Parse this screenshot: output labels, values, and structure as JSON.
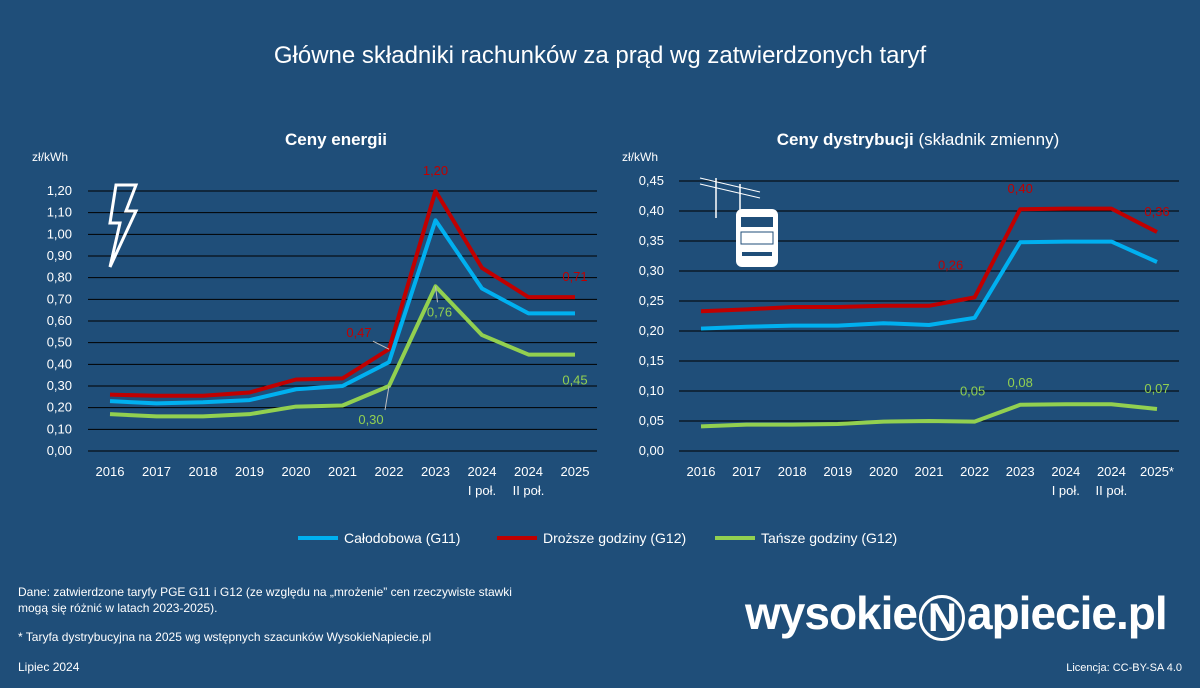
{
  "title": "Główne składniki rachunków za prąd wg zatwierdzonych taryf",
  "colors": {
    "background": "#1f4e79",
    "g11": "#00b0f0",
    "g12_peak": "#c00000",
    "g12_offpeak": "#92d050",
    "grid": "#000000",
    "text": "#ffffff"
  },
  "legend": [
    {
      "label": "Całodobowa (G11)",
      "color": "#00b0f0"
    },
    {
      "label": "Droższe godziny (G12)",
      "color": "#c00000"
    },
    {
      "label": "Tańsze godziny (G12)",
      "color": "#92d050"
    }
  ],
  "chart_data": [
    {
      "type": "line",
      "title": "Ceny energii",
      "title_suffix": "",
      "ylabel": "zł/kWh",
      "ylim": [
        0,
        1.2
      ],
      "yticks": [
        "0,00",
        "0,10",
        "0,20",
        "0,30",
        "0,40",
        "0,50",
        "0,60",
        "0,70",
        "0,80",
        "0,90",
        "1,00",
        "1,10",
        "1,20"
      ],
      "categories": [
        "2016",
        "2017",
        "2018",
        "2019",
        "2020",
        "2021",
        "2022",
        "2023",
        "2024",
        "2024",
        "2025"
      ],
      "subcategories": [
        "",
        "",
        "",
        "",
        "",
        "",
        "",
        "",
        "I poł.",
        "II poł.",
        ""
      ],
      "icon": "lightning-icon",
      "series": [
        {
          "name": "Całodobowa (G11)",
          "values": [
            0.23,
            0.22,
            0.225,
            0.235,
            0.285,
            0.3,
            0.41,
            1.065,
            0.75,
            0.635,
            0.635
          ]
        },
        {
          "name": "Droższe godziny (G12)",
          "values": [
            0.26,
            0.255,
            0.255,
            0.27,
            0.33,
            0.335,
            0.47,
            1.2,
            0.845,
            0.71,
            0.71
          ]
        },
        {
          "name": "Tańsze godziny (G12)",
          "values": [
            0.17,
            0.16,
            0.16,
            0.17,
            0.205,
            0.21,
            0.3,
            0.76,
            0.535,
            0.445,
            0.445
          ]
        }
      ],
      "annotations": [
        {
          "series": 1,
          "index": 6,
          "text": "0,47"
        },
        {
          "series": 1,
          "index": 7,
          "text": "1,20"
        },
        {
          "series": 1,
          "index": 10,
          "text": "0,71"
        },
        {
          "series": 2,
          "index": 6,
          "text": "0,30"
        },
        {
          "series": 2,
          "index": 7,
          "text": "0,76"
        },
        {
          "series": 2,
          "index": 10,
          "text": "0,45"
        }
      ]
    },
    {
      "type": "line",
      "title": "Ceny dystrybucji",
      "title_suffix": "(składnik zmienny)",
      "ylabel": "zł/kWh",
      "ylim": [
        0,
        0.45
      ],
      "yticks": [
        "0,00",
        "0,05",
        "0,10",
        "0,15",
        "0,20",
        "0,25",
        "0,30",
        "0,35",
        "0,40",
        "0,45"
      ],
      "categories": [
        "2016",
        "2017",
        "2018",
        "2019",
        "2020",
        "2021",
        "2022",
        "2023",
        "2024",
        "2024",
        "2025*"
      ],
      "subcategories": [
        "",
        "",
        "",
        "",
        "",
        "",
        "",
        "",
        "I poł.",
        "II poł.",
        ""
      ],
      "icon": "electricity-meter-icon",
      "series": [
        {
          "name": "Całodobowa (G11)",
          "values": [
            0.204,
            0.207,
            0.209,
            0.209,
            0.213,
            0.21,
            0.222,
            0.348,
            0.349,
            0.349,
            0.315
          ]
        },
        {
          "name": "Droższe godziny (G12)",
          "values": [
            0.233,
            0.236,
            0.24,
            0.24,
            0.242,
            0.242,
            0.256,
            0.403,
            0.404,
            0.404,
            0.365
          ]
        },
        {
          "name": "Tańsze godziny (G12)",
          "values": [
            0.041,
            0.044,
            0.044,
            0.045,
            0.049,
            0.05,
            0.049,
            0.077,
            0.078,
            0.078,
            0.07
          ]
        }
      ],
      "annotations": [
        {
          "series": 1,
          "index": 6,
          "text": "0,26"
        },
        {
          "series": 1,
          "index": 7,
          "text": "0,40"
        },
        {
          "series": 1,
          "index": 10,
          "text": "0,36"
        },
        {
          "series": 2,
          "index": 6,
          "text": "0,05"
        },
        {
          "series": 2,
          "index": 7,
          "text": "0,08"
        },
        {
          "series": 2,
          "index": 10,
          "text": "0,07"
        }
      ]
    }
  ],
  "notes": {
    "source": "Dane: zatwierdzone taryfy PGE G11 i G12 (ze względu na „mrożenie” cen rzeczywiste stawki mogą się różnić w latach 2023-2025).",
    "footnote": "* Taryfa dystrybucyjna na 2025 wg wstępnych szacunków WysokieNapiecie.pl",
    "date": "Lipiec 2024",
    "license": "Licencja: CC-BY-SA 4.0"
  },
  "logo": {
    "left": "wysokie",
    "mid": "N",
    "right": "apiecie.pl"
  }
}
